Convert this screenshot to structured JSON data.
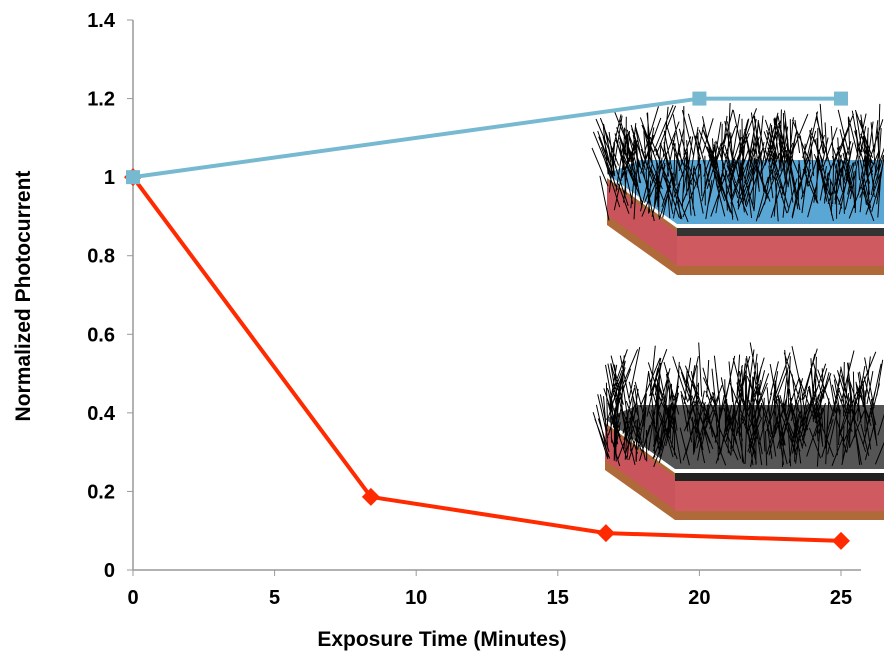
{
  "chart_data": {
    "type": "line",
    "x_label": "Exposure Time (Minutes)",
    "y_label": "Normalized Photocurrent",
    "xlim": [
      0,
      25
    ],
    "xticks": [
      0,
      5,
      10,
      15,
      20,
      25
    ],
    "ylim": [
      0,
      1.4
    ],
    "yticks": [
      0,
      0.2,
      0.4,
      0.6,
      0.8,
      1,
      1.2,
      1.4
    ],
    "series": [
      {
        "color": "#ff2a00",
        "marker": "diamond",
        "x": [
          0,
          8.4,
          16.7,
          25
        ],
        "values": [
          1,
          0.186,
          0.094,
          0.074
        ]
      },
      {
        "color": "#77b9d1",
        "marker": "square",
        "x": [
          0,
          20,
          25
        ],
        "values": [
          1,
          1.2,
          1.2
        ]
      }
    ]
  }
}
